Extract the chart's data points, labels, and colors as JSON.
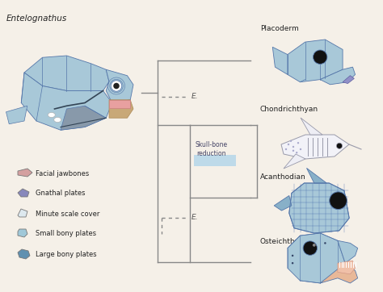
{
  "bg_color": "#f5f0e8",
  "title_left": "Entelognathus",
  "labels_right": [
    "Placoderm",
    "Chondrichthyan",
    "Acanthodian",
    "Osteichthyan"
  ],
  "legend_items": [
    {
      "label": "Facial jawbones",
      "color": "#d4a0a0"
    },
    {
      "label": "Gnathal plates",
      "color": "#8888bb"
    },
    {
      "label": "Minute scale cover",
      "color": "#dde8ee"
    },
    {
      "label": "Small bony plates",
      "color": "#a0c8d8"
    },
    {
      "label": "Large bony plates",
      "color": "#6090b0"
    }
  ],
  "tree_color": "#888888",
  "dashed_color": "#888888",
  "skull_box_color": "#b8d8ea",
  "skull_label": "Skull-bone\nreduction",
  "E_label": "E.",
  "fish_color": "#a8c8d8",
  "fish_outline": "#5577aa",
  "fish_line": "#4466aa"
}
